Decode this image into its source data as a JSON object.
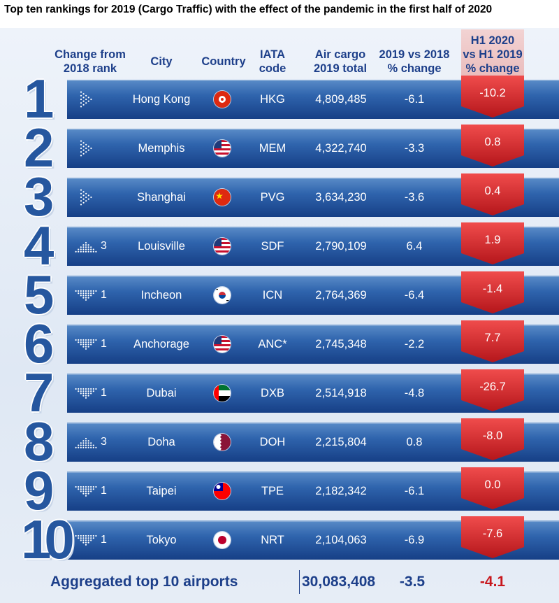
{
  "title": "Top ten rankings for 2019 (Cargo Traffic) with the effect of the pandemic in the first half of 2020",
  "headers": {
    "change_l1": "Change from",
    "change_l2": "2018 rank",
    "city": "City",
    "country": "Country",
    "iata_l1": "IATA",
    "iata_l2": "code",
    "cargo_l1": "Air cargo",
    "cargo_l2": "2019 total",
    "pct_l1": "2019 vs 2018",
    "pct_l2": "% change",
    "h1_l1": "H1 2020",
    "h1_l2": "vs H1 2019",
    "h1_l3": "% change"
  },
  "colors": {
    "header_text": "#1d3f8a",
    "band": "#2f64ad",
    "rank_number": "#26579f",
    "h1_red": "#d7262b",
    "footer_red": "#c8171d"
  },
  "chart_data": {
    "type": "table",
    "title": "Top ten rankings for 2019 (Cargo Traffic) with the effect of the pandemic in the first half of 2020",
    "columns": [
      "Change from 2018 rank",
      "City",
      "Country",
      "IATA code",
      "Air cargo 2019 total",
      "2019 vs 2018 % change",
      "H1 2020 vs H1 2019 % change"
    ],
    "rows": [
      {
        "rank": "1",
        "change_dir": "same",
        "change_num": "",
        "city": "Hong Kong",
        "country_icon": "hong-kong-flag",
        "iata": "HKG",
        "cargo": "4,809,485",
        "pct": "-6.1",
        "h1": "-10.2"
      },
      {
        "rank": "2",
        "change_dir": "same",
        "change_num": "",
        "city": "Memphis",
        "country_icon": "usa-flag",
        "iata": "MEM",
        "cargo": "4,322,740",
        "pct": "-3.3",
        "h1": "0.8"
      },
      {
        "rank": "3",
        "change_dir": "same",
        "change_num": "",
        "city": "Shanghai",
        "country_icon": "china-flag",
        "iata": "PVG",
        "cargo": "3,634,230",
        "pct": "-3.6",
        "h1": "0.4"
      },
      {
        "rank": "4",
        "change_dir": "up",
        "change_num": "3",
        "city": "Louisville",
        "country_icon": "usa-flag",
        "iata": "SDF",
        "cargo": "2,790,109",
        "pct": "6.4",
        "h1": "1.9"
      },
      {
        "rank": "5",
        "change_dir": "down",
        "change_num": "1",
        "city": "Incheon",
        "country_icon": "south-korea-flag",
        "iata": "ICN",
        "cargo": "2,764,369",
        "pct": "-6.4",
        "h1": "-1.4"
      },
      {
        "rank": "6",
        "change_dir": "down",
        "change_num": "1",
        "city": "Anchorage",
        "country_icon": "usa-flag",
        "iata": "ANC*",
        "cargo": "2,745,348",
        "pct": "-2.2",
        "h1": "7.7"
      },
      {
        "rank": "7",
        "change_dir": "down",
        "change_num": "1",
        "city": "Dubai",
        "country_icon": "uae-flag",
        "iata": "DXB",
        "cargo": "2,514,918",
        "pct": "-4.8",
        "h1": "-26.7"
      },
      {
        "rank": "8",
        "change_dir": "up",
        "change_num": "3",
        "city": "Doha",
        "country_icon": "qatar-flag",
        "iata": "DOH",
        "cargo": "2,215,804",
        "pct": "0.8",
        "h1": "-8.0"
      },
      {
        "rank": "9",
        "change_dir": "down",
        "change_num": "1",
        "city": "Taipei",
        "country_icon": "taiwan-flag",
        "iata": "TPE",
        "cargo": "2,182,342",
        "pct": "-6.1",
        "h1": "0.0"
      },
      {
        "rank": "10",
        "change_dir": "down",
        "change_num": "1",
        "city": "Tokyo",
        "country_icon": "japan-flag",
        "iata": "NRT",
        "cargo": "2,104,063",
        "pct": "-6.9",
        "h1": "-7.6"
      }
    ],
    "aggregate": {
      "label": "Aggregated top 10 airports",
      "cargo": "30,083,408",
      "pct": "-3.5",
      "h1": "-4.1"
    }
  }
}
